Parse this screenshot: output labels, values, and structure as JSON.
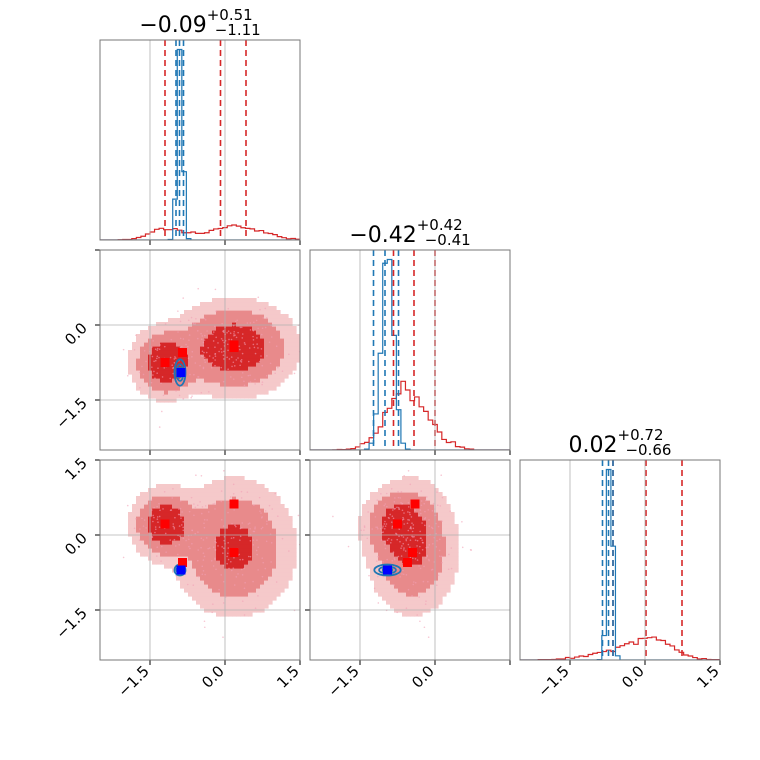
{
  "colors": {
    "red": "#d62728",
    "red_mid": "#e88a8b",
    "red_light": "#f5c9ca",
    "blue": "#1f77b4",
    "blue_marker": "#0000ff",
    "red_marker": "#ff0000",
    "grid": "#b0b0b0"
  },
  "chart_data": {
    "type": "corner",
    "axis_range": [
      -2.5,
      1.5
    ],
    "ticks": [
      -1.5,
      0.0,
      1.5
    ],
    "tick_labels": [
      "-1.5",
      "0.0",
      "1.5"
    ],
    "tick_labels_text": {
      "neg": "−1.5",
      "zero": "0.0",
      "pos": "1.5"
    },
    "titles": [
      {
        "value": "−0.09",
        "upper": "+0.51",
        "lower": "−1.11"
      },
      {
        "value": "−0.42",
        "upper": "+0.42",
        "lower": "−0.41"
      },
      {
        "value": "0.02",
        "upper": "+0.72",
        "lower": "−0.66"
      }
    ],
    "quantile_lines": {
      "red": [
        [
          -1.2,
          -0.09,
          0.42
        ],
        [
          -0.83,
          -0.42,
          0.0
        ],
        [
          -0.64,
          0.02,
          0.74
        ]
      ],
      "blue": [
        [
          -0.98,
          -0.91,
          -0.83
        ],
        [
          -1.23,
          -1.0,
          -0.73
        ],
        [
          -0.85,
          -0.73,
          -0.64
        ]
      ]
    },
    "series": [
      {
        "name": "red",
        "components": [
          {
            "weight": 0.3,
            "mean": [
              -1.2,
              -0.75,
              0.22
            ],
            "sd": [
              0.3,
              0.32,
              0.32
            ]
          },
          {
            "weight": 0.7,
            "mean": [
              0.18,
              -0.45,
              -0.25
            ],
            "sd": [
              0.55,
              0.42,
              0.62
            ]
          }
        ],
        "markers": [
          [
            -1.2,
            -0.75,
            0.22
          ],
          [
            -0.85,
            -0.55,
            -0.55
          ],
          [
            0.18,
            -0.45,
            -0.35
          ],
          [
            0.18,
            -0.4,
            0.62
          ]
        ]
      },
      {
        "name": "blue",
        "components": [
          {
            "weight": 1.0,
            "mean": [
              -0.9,
              -0.95,
              -0.7
            ],
            "sd": [
              0.05,
              0.12,
              0.05
            ]
          }
        ],
        "markers": [
          [
            -0.88,
            -0.95,
            -0.7
          ]
        ]
      }
    ]
  }
}
